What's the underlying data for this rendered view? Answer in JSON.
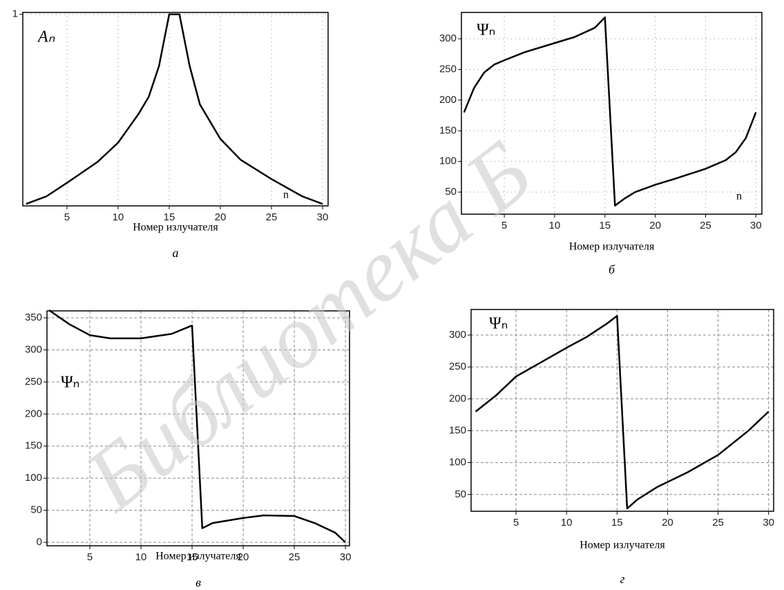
{
  "watermark": "Библиотека Б",
  "chart_data": [
    {
      "type": "line",
      "xlabel": "Номер излучателя",
      "caption": "а",
      "annotations": [
        "Aₙ",
        "n"
      ],
      "x": [
        1,
        3,
        5,
        8,
        10,
        12,
        13,
        14,
        15,
        16,
        17,
        18,
        20,
        22,
        25,
        28,
        30
      ],
      "values": [
        0.01,
        0.05,
        0.12,
        0.23,
        0.33,
        0.48,
        0.57,
        0.73,
        1.0,
        1.0,
        0.73,
        0.53,
        0.35,
        0.24,
        0.14,
        0.05,
        0.01
      ],
      "color": "#000000",
      "xlim": [
        0.68,
        30.54
      ],
      "ylim": [
        0,
        1.01
      ],
      "xticks": [
        5,
        10,
        15,
        20,
        25,
        30
      ],
      "yticks": [
        1
      ],
      "grid": "dotted"
    },
    {
      "type": "line",
      "xlabel": "Номер излучателя",
      "caption": "б",
      "annotations": [
        "Ψₙ",
        "n"
      ],
      "x": [
        1,
        2,
        3,
        4,
        5,
        7,
        10,
        12,
        14,
        15,
        16,
        17,
        18,
        20,
        22,
        25,
        27,
        28,
        29,
        30
      ],
      "values": [
        180,
        220,
        245,
        258,
        265,
        278,
        293,
        303,
        318,
        335,
        28,
        40,
        50,
        62,
        72,
        88,
        102,
        115,
        138,
        180
      ],
      "color": "#000000",
      "xlim": [
        0.74,
        30.6
      ],
      "ylim": [
        14,
        343
      ],
      "xticks": [
        5,
        10,
        15,
        20,
        25,
        30
      ],
      "yticks": [
        50,
        100,
        150,
        200,
        250,
        300
      ],
      "grid": "dotted"
    },
    {
      "type": "line",
      "xlabel": "Номер излучателя",
      "caption": "в",
      "annotations": [
        "Ψₙ"
      ],
      "x": [
        1,
        3,
        5,
        7,
        10,
        13,
        15,
        16,
        17,
        20,
        22,
        25,
        27,
        29,
        30
      ],
      "values": [
        362,
        340,
        323,
        318,
        318,
        325,
        338,
        22,
        30,
        38,
        42,
        41,
        30,
        15,
        0
      ],
      "color": "#000000",
      "xlim": [
        0.81,
        30.4
      ],
      "ylim": [
        -5.4,
        360.8
      ],
      "xticks": [
        5,
        10,
        15,
        20,
        25,
        30
      ],
      "yticks": [
        0,
        50,
        100,
        150,
        200,
        250,
        300,
        350
      ],
      "grid": "dashed"
    },
    {
      "type": "line",
      "xlabel": "Номер излучателя",
      "caption": "г",
      "annotations": [
        "Ψₙ"
      ],
      "x": [
        1,
        3,
        5,
        8,
        10,
        12,
        14,
        15,
        16,
        17,
        19,
        22,
        25,
        28,
        30
      ],
      "values": [
        180,
        205,
        235,
        262,
        280,
        297,
        318,
        330,
        28,
        42,
        62,
        85,
        112,
        150,
        180
      ],
      "color": "#000000",
      "xlim": [
        0.55,
        30.5
      ],
      "ylim": [
        23.8,
        340
      ],
      "xticks": [
        5,
        10,
        15,
        20,
        25,
        30
      ],
      "yticks": [
        50,
        100,
        150,
        200,
        250,
        300
      ],
      "grid": "dashed"
    }
  ]
}
